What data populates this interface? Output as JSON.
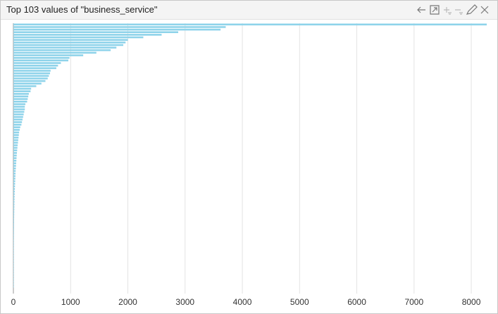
{
  "chart_data": {
    "type": "barh",
    "title": "Top 103 values of \"business_service\"",
    "values": [
      8270,
      3710,
      3620,
      2880,
      2590,
      2270,
      2000,
      1960,
      1920,
      1800,
      1700,
      1450,
      1220,
      980,
      960,
      830,
      780,
      750,
      650,
      640,
      620,
      600,
      560,
      490,
      400,
      310,
      300,
      270,
      260,
      250,
      240,
      210,
      200,
      200,
      190,
      180,
      170,
      160,
      150,
      140,
      120,
      110,
      100,
      95,
      90,
      85,
      80,
      75,
      70,
      66,
      62,
      58,
      55,
      52,
      49,
      46,
      43,
      40,
      38,
      36,
      34,
      32,
      30,
      28,
      26,
      24,
      22,
      21,
      20,
      19,
      18,
      17,
      16,
      15,
      14,
      13,
      12,
      12,
      11,
      11,
      10,
      10,
      9,
      9,
      8,
      8,
      8,
      7,
      7,
      7,
      6,
      6,
      6,
      5,
      5,
      5,
      4,
      4,
      4,
      3,
      3,
      3,
      2
    ],
    "color": "#8ed3ea",
    "xlim": [
      0,
      8270
    ],
    "xticks": [
      0,
      1000,
      2000,
      3000,
      4000,
      5000,
      6000,
      7000,
      8000
    ],
    "grid": true
  }
}
